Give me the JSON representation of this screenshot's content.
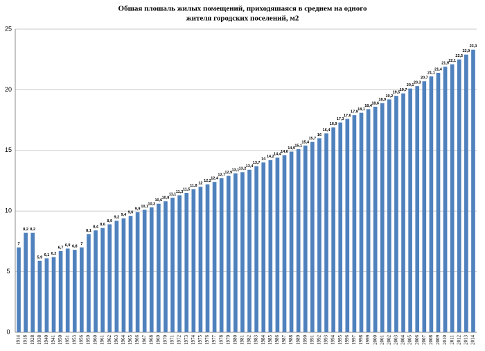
{
  "chart_data": {
    "type": "bar",
    "title": [
      "Обшая плошаль жилых  помещений, приходяшаяся в среднем на одного",
      "жителя городских  поселений, м2"
    ],
    "categories": [
      "1914",
      "1918",
      "1928",
      "1938",
      "1940",
      "1941",
      "1950",
      "1951",
      "1953",
      "1956",
      "1959",
      "1960",
      "1961",
      "1962",
      "1963",
      "1964",
      "1965",
      "1966",
      "1967",
      "1968",
      "1969",
      "1970",
      "1971",
      "1972",
      "1973",
      "1974",
      "1975",
      "1976",
      "1977",
      "1978",
      "1979",
      "1980",
      "1981",
      "1982",
      "1983",
      "1984",
      "1985",
      "1986",
      "1987",
      "1988",
      "1989",
      "1990",
      "1991",
      "1992",
      "1993",
      "1994",
      "1995",
      "1996",
      "1997",
      "1998",
      "1999",
      "2000",
      "2001",
      "2002",
      "2003",
      "2004",
      "2005",
      "2006",
      "2007",
      "2008",
      "2009",
      "2010",
      "2011",
      "2012",
      "2013",
      "2014"
    ],
    "values": [
      7,
      8.2,
      8.2,
      5.9,
      6.1,
      6.2,
      6.7,
      6.9,
      6.8,
      7,
      8.1,
      8.4,
      8.6,
      8.9,
      9.2,
      9.4,
      9.6,
      9.9,
      10.1,
      10.3,
      10.6,
      10.8,
      11.1,
      11.3,
      11.5,
      11.8,
      12,
      12.2,
      12.4,
      12.7,
      12.9,
      13.1,
      13.2,
      13.4,
      13.7,
      14,
      14.2,
      14.4,
      14.6,
      14.9,
      15.1,
      15.4,
      15.7,
      16,
      16.4,
      16.9,
      17.3,
      17.6,
      17.9,
      18.1,
      18.4,
      18.6,
      18.9,
      19.2,
      19.5,
      19.7,
      20.1,
      20.3,
      20.7,
      21.1,
      21.4,
      21.9,
      22.1,
      22.5,
      22.9,
      23.3
    ],
    "value_labels": [
      "7",
      "8,2",
      "8,2",
      "5,9",
      "6,1",
      "6,2",
      "6,7",
      "6,9",
      "6,8",
      "7",
      "8,1",
      "8,4",
      "8,6",
      "8,9",
      "9,2",
      "9,4",
      "9,6",
      "9,9",
      "10,1",
      "10,3",
      "10,6",
      "10,8",
      "11,1",
      "11,3",
      "11,5",
      "11,8",
      "12",
      "12,2",
      "12,4",
      "12,7",
      "12,9",
      "13,1",
      "13,2",
      "13,4",
      "13,7",
      "14",
      "14,2",
      "14,4",
      "14,6",
      "14,9",
      "15,1",
      "15,4",
      "15,7",
      "16",
      "16,4",
      "16,9",
      "17,3",
      "17,6",
      "17,9",
      "18,1",
      "18,4",
      "18,6",
      "18,9",
      "19,2",
      "19,5",
      "19,7",
      "20,1",
      "20,3",
      "20,7",
      "21,1",
      "21,4",
      "21,9",
      "22,1",
      "22,5",
      "22,9",
      "23,3"
    ],
    "color": "#4f81bd",
    "ylim": [
      0,
      25
    ],
    "yticks": [
      0,
      5,
      10,
      15,
      20,
      25
    ],
    "grid": true
  }
}
